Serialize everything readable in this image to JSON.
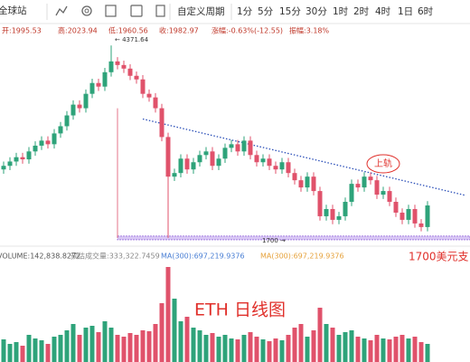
{
  "toolbar": {
    "site": "全球站",
    "custom_period": "自定义周期",
    "periods": [
      "1分",
      "5分",
      "15分",
      "30分",
      "1时",
      "2时",
      "4时",
      "1日",
      "6时"
    ]
  },
  "info": [
    "开:1995.53",
    "高:2023.94",
    "低:1960.56",
    "收:1982.97",
    "涨幅:-0.63%(-12.55)",
    "振幅:3.18%"
  ],
  "chart_data": {
    "type": "candlestick",
    "title": "ETH 日线图",
    "open": [
      2650,
      2700,
      2760,
      2820,
      2790,
      2900,
      2980,
      3050,
      3000,
      3150,
      3250,
      3400,
      3550,
      3500,
      3700,
      3850,
      3800,
      4000,
      4150,
      4100,
      4050,
      3950,
      3900,
      3700,
      3650,
      3500,
      3100,
      2550,
      2600,
      2800,
      2650,
      2750,
      2850,
      2900,
      2700,
      2800,
      2950,
      3000,
      2900,
      3050,
      2850,
      2750,
      2800,
      2700,
      2650,
      2750,
      2600,
      2500,
      2400,
      2550,
      2350,
      2000,
      2100,
      1950,
      2000,
      2200,
      2450,
      2400,
      2550,
      2500,
      2300,
      2350,
      2200,
      2050,
      1950,
      2100,
      1900,
      1850
    ],
    "high": [
      2760,
      2820,
      2880,
      2880,
      2960,
      3040,
      3110,
      3110,
      3210,
      3310,
      3460,
      3610,
      3610,
      3760,
      3910,
      3910,
      4060,
      4371.64,
      4210,
      4160,
      4110,
      4010,
      3960,
      3760,
      3710,
      3560,
      3160,
      2660,
      2860,
      2860,
      2810,
      2910,
      2960,
      2960,
      2860,
      3010,
      3060,
      3060,
      3110,
      3110,
      2910,
      2860,
      2860,
      2760,
      2810,
      2810,
      2660,
      2560,
      2610,
      2610,
      2410,
      2160,
      2160,
      2060,
      2260,
      2510,
      2510,
      2610,
      2610,
      2560,
      2410,
      2410,
      2260,
      2110,
      2160,
      2160,
      1960,
      2210
    ],
    "low": [
      2590,
      2640,
      2700,
      2730,
      2730,
      2840,
      2920,
      2940,
      2940,
      3090,
      3190,
      3340,
      3440,
      3440,
      3640,
      3740,
      3740,
      3940,
      4040,
      3990,
      3890,
      3840,
      3640,
      3590,
      3440,
      3040,
      1700,
      2490,
      2540,
      2590,
      2590,
      2690,
      2790,
      2640,
      2640,
      2740,
      2890,
      2840,
      2840,
      2790,
      2690,
      2690,
      2640,
      2590,
      2590,
      2540,
      2440,
      2340,
      2340,
      2290,
      1940,
      1940,
      1890,
      1890,
      1940,
      2140,
      2340,
      2340,
      2440,
      2240,
      2240,
      2140,
      1990,
      1890,
      1890,
      1840,
      1790,
      1790
    ],
    "close": [
      2700,
      2760,
      2820,
      2790,
      2900,
      2980,
      3050,
      3000,
      3150,
      3250,
      3400,
      3550,
      3500,
      3700,
      3850,
      3800,
      4000,
      4150,
      4100,
      4050,
      3950,
      3900,
      3700,
      3650,
      3500,
      3100,
      2550,
      2600,
      2800,
      2650,
      2750,
      2850,
      2900,
      2700,
      2800,
      2950,
      3000,
      2900,
      3050,
      2850,
      2750,
      2800,
      2700,
      2650,
      2750,
      2600,
      2500,
      2400,
      2550,
      2350,
      2000,
      2100,
      1950,
      2000,
      2200,
      2450,
      2400,
      2550,
      2500,
      2300,
      2350,
      2200,
      2050,
      1950,
      2100,
      1900,
      1850,
      2150
    ],
    "volume": [
      250000,
      200000,
      220000,
      180000,
      300000,
      260000,
      240000,
      200000,
      280000,
      300000,
      350000,
      420000,
      300000,
      380000,
      400000,
      330000,
      450000,
      380000,
      300000,
      280000,
      320000,
      300000,
      350000,
      340000,
      420000,
      650000,
      1050000,
      700000,
      450000,
      500000,
      380000,
      350000,
      300000,
      320000,
      280000,
      300000,
      260000,
      250000,
      300000,
      330000,
      280000,
      250000,
      230000,
      260000,
      240000,
      300000,
      380000,
      420000,
      280000,
      350000,
      600000,
      420000,
      380000,
      300000,
      330000,
      350000,
      280000,
      260000,
      240000,
      300000,
      260000,
      250000,
      280000,
      300000,
      260000,
      280000,
      220000,
      200000
    ],
    "ylim": [
      1660,
      4500
    ],
    "volume_lim": [
      0,
      1200000
    ],
    "up_color": "#2ea37a",
    "down_color": "#e0526b",
    "peak_label": "← 4371.64",
    "support": {
      "level": 1700,
      "start_index": 18,
      "label": "1700 →",
      "note": "1700美元支"
    },
    "trendline": {
      "start": [
        22,
        3350
      ],
      "end": [
        73,
        2290
      ]
    },
    "resistance_label": "上轨",
    "volume_header": [
      {
        "text": "VOLUME:142,838.8272",
        "color": "#555"
      },
      {
        "text": "预估成交量:333,322.7459",
        "color": "#888"
      },
      {
        "text": "MA(300):697,219.9376",
        "color": "#4a7fd4"
      },
      {
        "text": "MA(300):697,219.9376",
        "color": "#e6a23c"
      }
    ]
  }
}
